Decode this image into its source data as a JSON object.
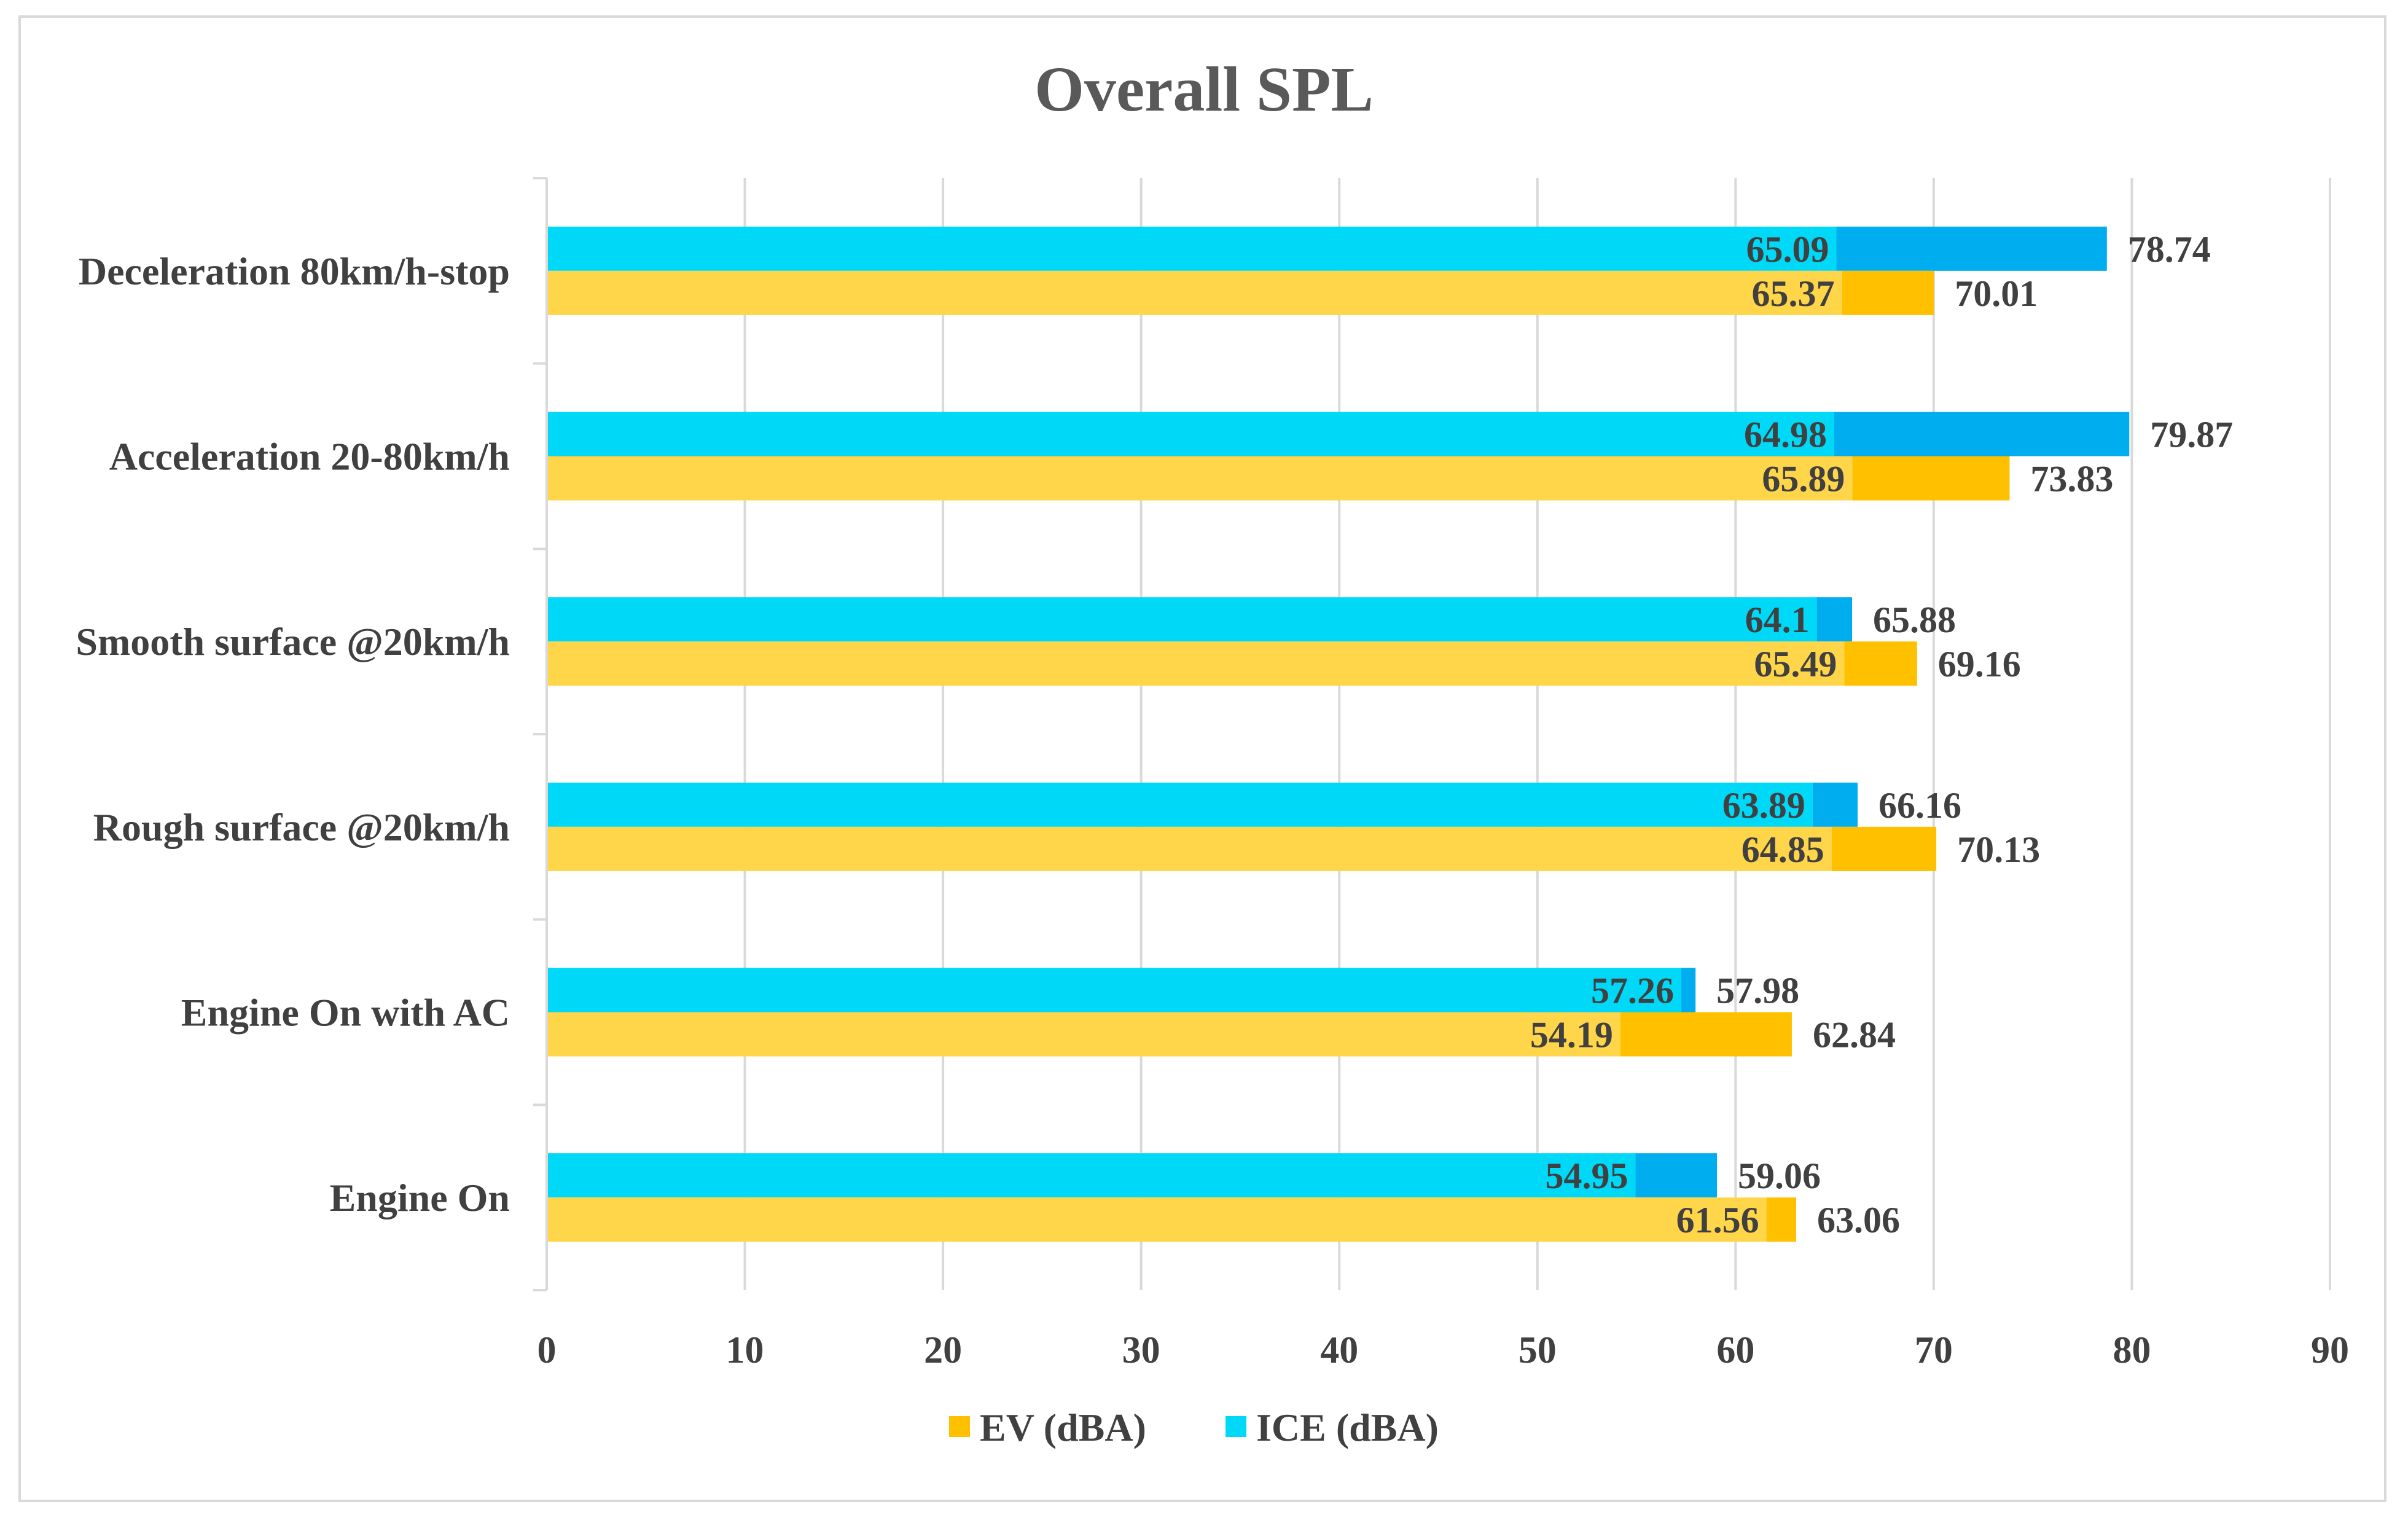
{
  "chart_data": {
    "type": "bar",
    "orientation": "horizontal",
    "title": "Overall SPL",
    "xlabel": "",
    "ylabel": "",
    "xlim": [
      0,
      90
    ],
    "x_ticks": [
      0,
      10,
      20,
      30,
      40,
      50,
      60,
      70,
      80,
      90
    ],
    "grid": true,
    "legend_position": "bottom",
    "categories": [
      "Deceleration 80km/h-stop",
      "Acceleration 20-80km/h",
      "Smooth surface @20km/h",
      "Rough surface @20km/h",
      "Engine On with AC",
      "Engine On"
    ],
    "series": [
      {
        "name": "ICE (dBA)",
        "color": "#00d8f8",
        "secondary_color": "#00adef",
        "base_values": [
          65.09,
          64.98,
          64.1,
          63.89,
          57.26,
          54.95
        ],
        "total_values": [
          78.74,
          79.87,
          65.88,
          66.16,
          57.98,
          59.06
        ]
      },
      {
        "name": "EV (dBA)",
        "color": "#ffd54a",
        "secondary_color": "#ffc000",
        "base_values": [
          65.37,
          65.89,
          65.49,
          64.85,
          54.19,
          61.56
        ],
        "total_values": [
          70.01,
          73.83,
          69.16,
          70.13,
          62.84,
          63.06
        ]
      }
    ],
    "legend": [
      "EV (dBA)",
      "ICE (dBA)"
    ],
    "legend_colors": [
      "#ffc000",
      "#00d8f8"
    ]
  }
}
